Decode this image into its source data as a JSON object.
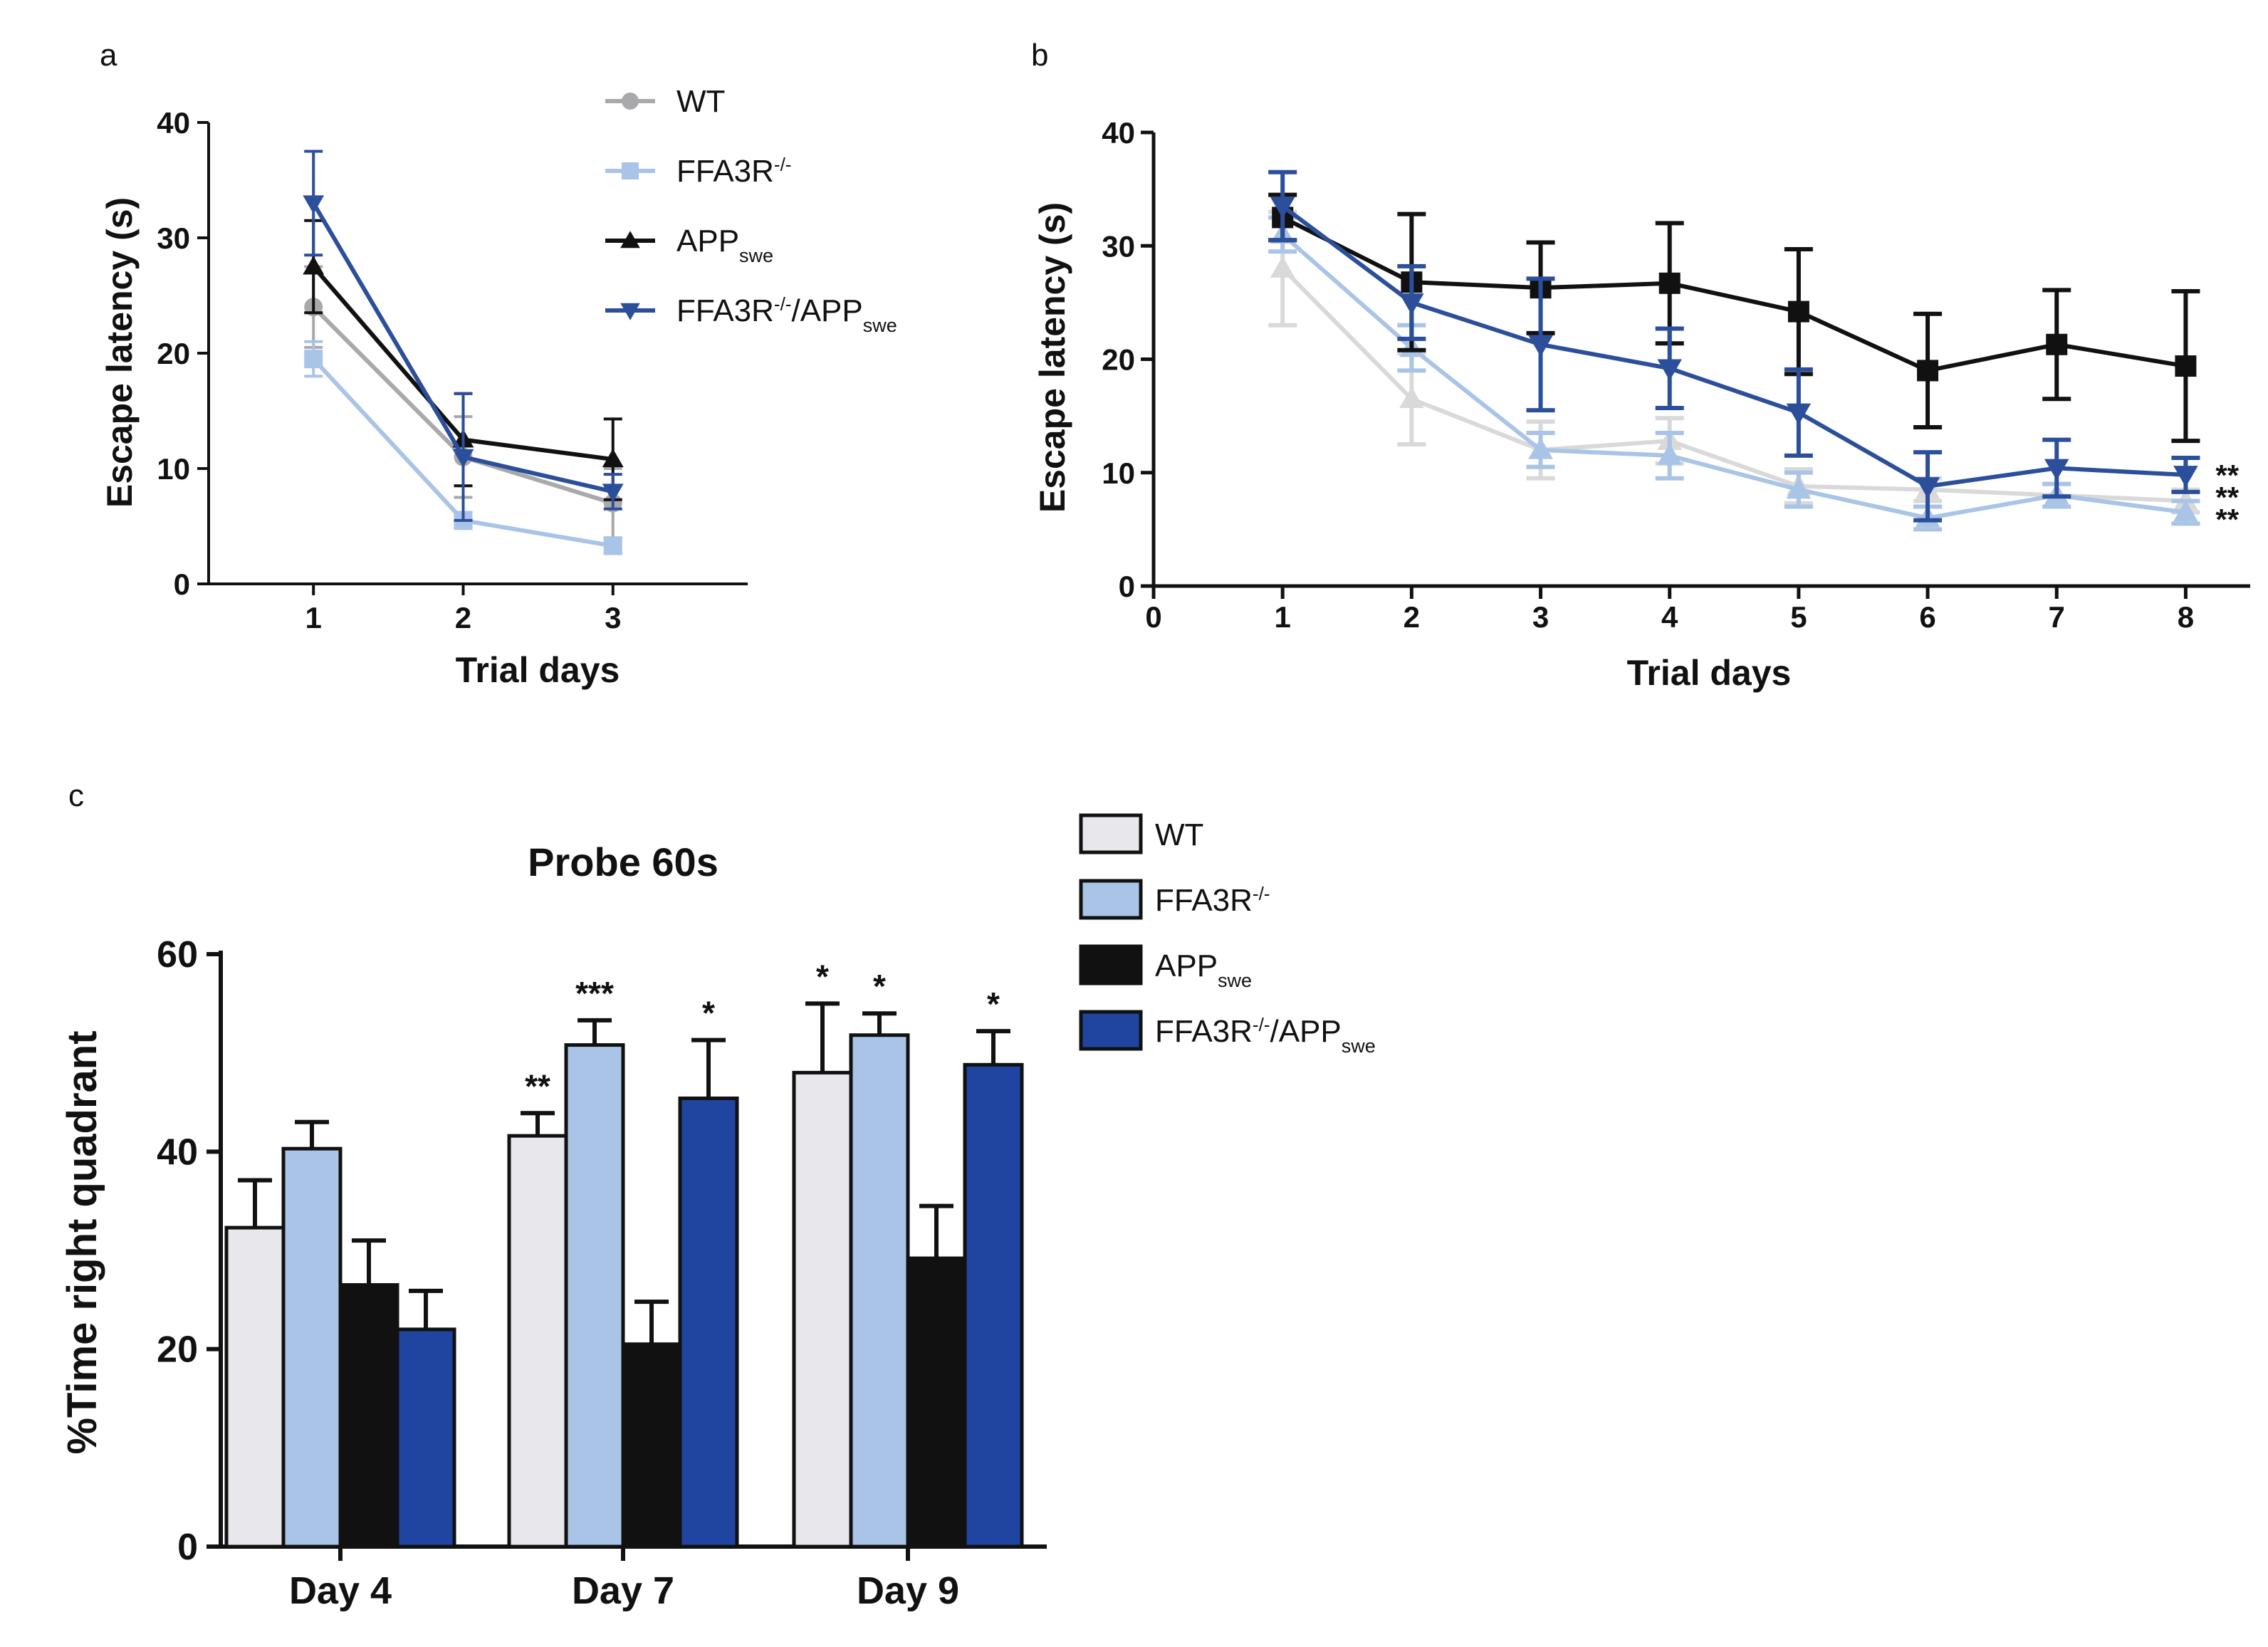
{
  "chart_data": [
    {
      "panel": "a",
      "type": "line",
      "title": "",
      "xlabel": "Trial days",
      "ylabel": "Escape latency (s)",
      "x": [
        1,
        2,
        3
      ],
      "xticks": [
        "1",
        "2",
        "3"
      ],
      "yticks": [
        "0",
        "10",
        "20",
        "30",
        "40"
      ],
      "xlim": [
        0.3,
        3.9
      ],
      "ylim": [
        0,
        40
      ],
      "legend_position": "top-right",
      "series": [
        {
          "name": "WT",
          "base": "WT",
          "sup": "",
          "sub": "",
          "tail": "",
          "color": "#a9a9ab",
          "marker": "circle",
          "values": [
            24,
            11,
            7
          ],
          "errors": [
            3.5,
            3.5,
            3
          ]
        },
        {
          "name": "FFA3R-/-",
          "base": "FFA3R",
          "sup": "-/-",
          "sub": "",
          "tail": "",
          "color": "#a9c4e6",
          "marker": "square",
          "values": [
            19.5,
            5.5,
            3.3
          ],
          "errors": [
            1.5,
            0.7,
            0.6
          ]
        },
        {
          "name": "APPswe",
          "base": "APP",
          "sup": "",
          "sub": "swe",
          "tail": "",
          "color": "#111111",
          "marker": "triangle-up",
          "values": [
            27.5,
            12.5,
            10.8
          ],
          "errors": [
            4,
            4,
            3.5
          ]
        },
        {
          "name": "FFA3R-/-/APPswe",
          "base": "FFA3R",
          "sup": "-/-",
          "sub": "swe",
          "tail": "/APP",
          "color": "#2c4f9c",
          "marker": "triangle-down",
          "values": [
            33,
            11,
            8
          ],
          "errors": [
            4.5,
            5.5,
            1.5
          ]
        }
      ]
    },
    {
      "panel": "b",
      "type": "line",
      "title": "",
      "xlabel": "Trial days",
      "ylabel": "Escape latency (s)",
      "x": [
        1,
        2,
        3,
        4,
        5,
        6,
        7,
        8
      ],
      "xticks": [
        "0",
        "1",
        "2",
        "3",
        "4",
        "5",
        "6",
        "7",
        "8"
      ],
      "yticks": [
        "0",
        "10",
        "20",
        "30",
        "40"
      ],
      "xlim": [
        0,
        8.5
      ],
      "ylim": [
        0,
        40
      ],
      "annotations": [
        "**",
        "**",
        "**"
      ],
      "series": [
        {
          "name": "WT",
          "color": "#d9d9d9",
          "marker": "triangle-up",
          "values": [
            28,
            16.5,
            12,
            12.8,
            8.8,
            8.5,
            8,
            7.5
          ],
          "errors": [
            5,
            4,
            2.5,
            2,
            1.5,
            1,
            1,
            1
          ]
        },
        {
          "name": "FFA3R-/-",
          "color": "#a9c4e6",
          "marker": "triangle-up",
          "values": [
            31,
            21,
            12,
            11.5,
            8.5,
            6,
            8,
            6.5
          ],
          "errors": [
            1.5,
            2,
            1.5,
            2,
            1.5,
            1,
            1,
            1
          ]
        },
        {
          "name": "APPswe",
          "color": "#111111",
          "marker": "square",
          "values": [
            32.5,
            26.8,
            26.3,
            26.7,
            24.2,
            19,
            21.3,
            19.4
          ],
          "errors": [
            2,
            6,
            4,
            5.3,
            5.5,
            5,
            4.8,
            6.6
          ]
        },
        {
          "name": "FFA3R-/-/APPswe",
          "color": "#2c4f9c",
          "marker": "triangle-down",
          "values": [
            33.5,
            25,
            21.3,
            19.2,
            15.3,
            8.8,
            10.4,
            9.8
          ],
          "errors": [
            3,
            3.2,
            5.8,
            3.5,
            3.8,
            3,
            2.5,
            1.5
          ]
        }
      ]
    },
    {
      "panel": "c",
      "type": "bar",
      "title": "Probe 60s",
      "xlabel": "",
      "ylabel": "%Time right quadrant",
      "categories": [
        "Day 4",
        "Day 7",
        "Day 9"
      ],
      "yticks": [
        "0",
        "20",
        "40",
        "60"
      ],
      "ylim": [
        0,
        60
      ],
      "legend_position": "top-right",
      "series": [
        {
          "name": "WT",
          "base": "WT",
          "sup": "",
          "sub": "",
          "tail": "",
          "color": "#e8e8ec",
          "values": [
            32.3,
            41.6,
            48
          ],
          "errors": [
            4.8,
            2.3,
            7
          ],
          "significance": [
            "",
            "**",
            "*"
          ]
        },
        {
          "name": "FFA3R-/-",
          "base": "FFA3R",
          "sup": "-/-",
          "sub": "",
          "tail": "",
          "color": "#a9c4e6",
          "values": [
            40.3,
            50.8,
            51.8
          ],
          "errors": [
            2.7,
            2.5,
            2.2
          ],
          "significance": [
            "",
            "***",
            "*"
          ]
        },
        {
          "name": "APPswe",
          "base": "APP",
          "sup": "",
          "sub": "swe",
          "tail": "",
          "color": "#111111",
          "values": [
            26.5,
            20.5,
            29.2
          ],
          "errors": [
            4.5,
            4.3,
            5.3
          ],
          "significance": [
            "",
            "",
            ""
          ]
        },
        {
          "name": "FFA3R-/-/APPswe",
          "base": "FFA3R",
          "sup": "-/-",
          "sub": "swe",
          "tail": "/APP",
          "color": "#1f45a0",
          "values": [
            22,
            45.4,
            48.8
          ],
          "errors": [
            3.9,
            5.9,
            3.4
          ],
          "significance": [
            "",
            "*",
            "*"
          ]
        }
      ]
    }
  ]
}
